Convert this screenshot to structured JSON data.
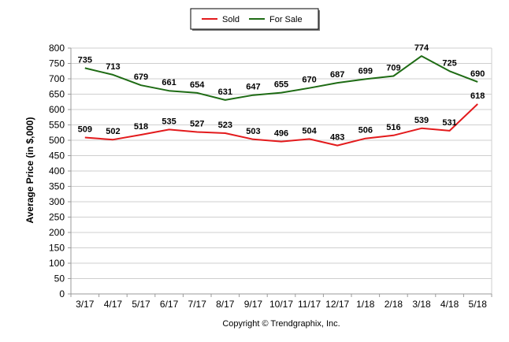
{
  "chart_data": {
    "type": "line",
    "categories": [
      "3/17",
      "4/17",
      "5/17",
      "6/17",
      "7/17",
      "8/17",
      "9/17",
      "10/17",
      "11/17",
      "12/17",
      "1/18",
      "2/18",
      "3/18",
      "4/18",
      "5/18"
    ],
    "series": [
      {
        "name": "Sold",
        "color": "#e31a1c",
        "values": [
          509,
          502,
          518,
          535,
          527,
          523,
          503,
          496,
          504,
          483,
          506,
          516,
          539,
          531,
          618
        ]
      },
      {
        "name": "For Sale",
        "color": "#1e6b14",
        "values": [
          735,
          713,
          679,
          661,
          654,
          631,
          647,
          655,
          670,
          687,
          699,
          709,
          774,
          725,
          690
        ]
      }
    ],
    "ylabel": "Average Price (in $,000)",
    "xlabel": "",
    "ylim": [
      0,
      800
    ],
    "yticks": [
      0,
      50,
      100,
      150,
      200,
      250,
      300,
      350,
      400,
      450,
      500,
      550,
      600,
      650,
      700,
      750,
      800
    ],
    "grid": true,
    "legend_position": "top-center",
    "caption": "Copyright © Trendgraphix, Inc."
  }
}
